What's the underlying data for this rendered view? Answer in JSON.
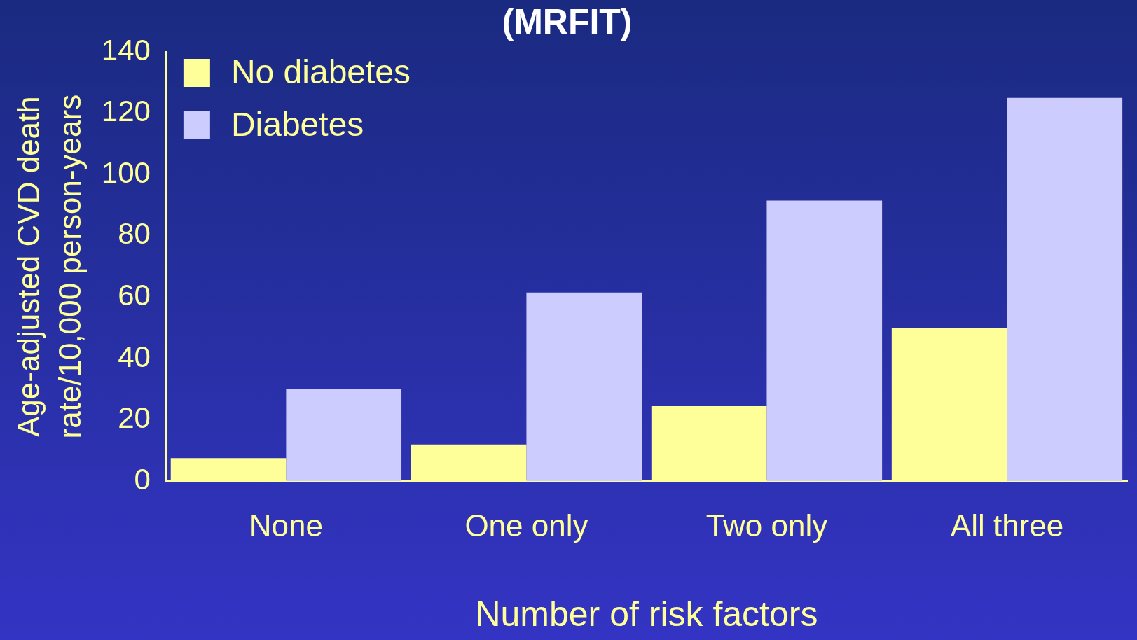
{
  "chart_data": {
    "type": "bar",
    "title": "(MRFIT)",
    "xlabel": "Number of risk factors",
    "ylabel": "Age-adjusted CVD death\nrate/10,000 person-years",
    "categories": [
      "None",
      "One only",
      "Two only",
      "All three"
    ],
    "series": [
      {
        "name": "No diabetes",
        "color": "#ffff99",
        "values": [
          7.5,
          12,
          24.5,
          50
        ]
      },
      {
        "name": "Diabetes",
        "color": "#ccccff",
        "values": [
          30,
          61.5,
          91.5,
          125
        ]
      }
    ],
    "ylim": [
      0,
      140
    ],
    "yticks": [
      0,
      20,
      40,
      60,
      80,
      100,
      120,
      140
    ],
    "grid": false,
    "legend": "top left"
  }
}
